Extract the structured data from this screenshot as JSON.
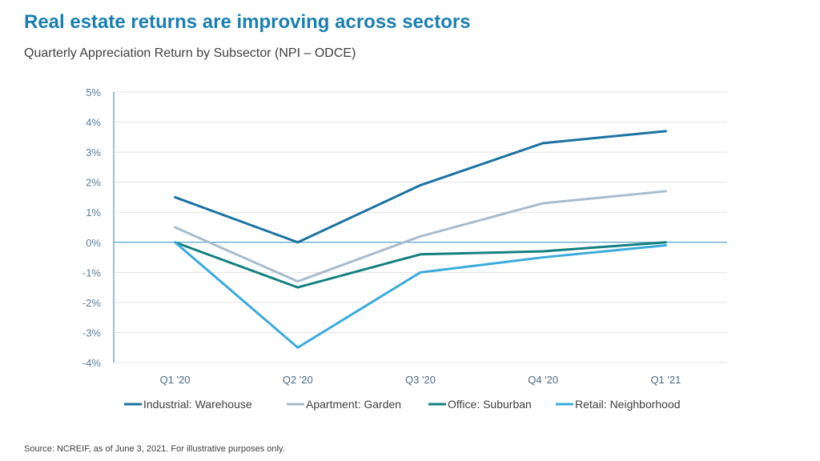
{
  "header": {
    "title": "Real estate returns are improving across sectors",
    "subtitle": "Quarterly Appreciation Return by Subsector (NPI – ODCE)"
  },
  "footer": {
    "source": "Source: NCREIF, as of June 3, 2021. For illustrative purposes only."
  },
  "chart_data": {
    "type": "line",
    "title": "Real estate returns are improving across sectors",
    "subtitle": "Quarterly Appreciation Return by Subsector (NPI – ODCE)",
    "categories": [
      "Q1 '20",
      "Q2 '20",
      "Q3 '20",
      "Q4 '20",
      "Q1 '21"
    ],
    "ylim": [
      -4,
      5
    ],
    "yticks": [
      5,
      4,
      3,
      2,
      1,
      0,
      -1,
      -2,
      -3,
      -4
    ],
    "y_tick_labels": [
      "5%",
      "4%",
      "3%",
      "2%",
      "1%",
      "0%",
      "-1%",
      "-2%",
      "-3%",
      "-4%"
    ],
    "grid": true,
    "legend_position": "bottom",
    "series": [
      {
        "name": "Industrial: Warehouse",
        "color": "#1a72a0",
        "values": [
          1.5,
          0.0,
          1.9,
          3.3,
          3.7
        ]
      },
      {
        "name": "Apartment: Garden",
        "color": "#a9bccb",
        "values": [
          0.5,
          -1.3,
          0.2,
          1.3,
          1.7
        ]
      },
      {
        "name": "Office: Suburban",
        "color": "#12807f",
        "values": [
          0.0,
          -1.5,
          -0.4,
          -0.3,
          0.0
        ]
      },
      {
        "name": "Retail: Neighborhood",
        "color": "#3aabdc",
        "values": [
          0.0,
          -3.5,
          -1.0,
          -0.5,
          -0.1
        ]
      }
    ]
  }
}
